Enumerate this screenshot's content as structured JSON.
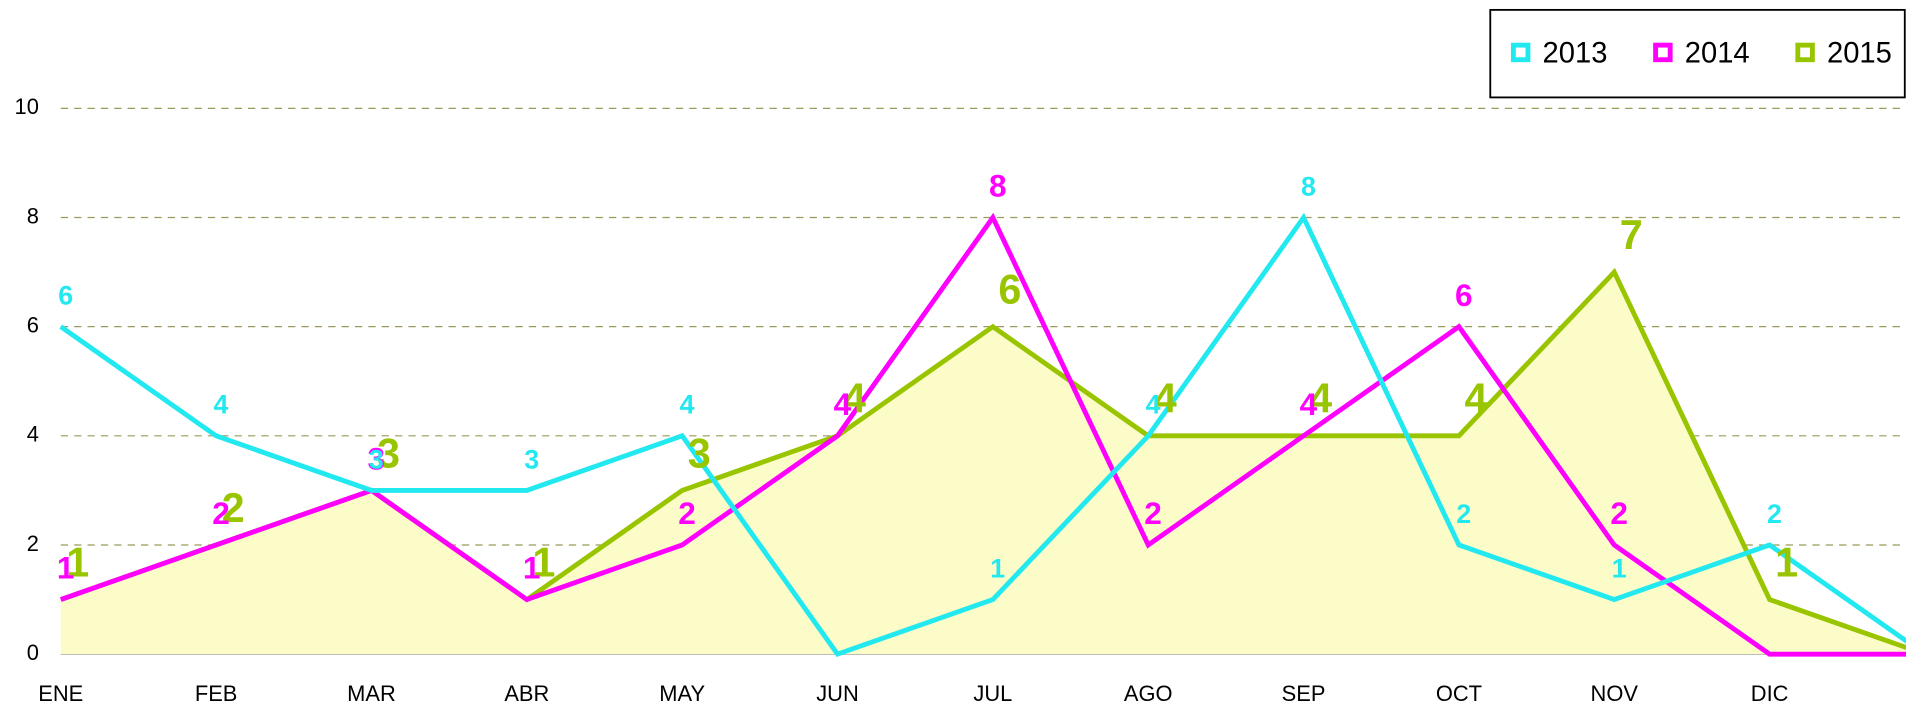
{
  "chart_data": {
    "type": "line",
    "categories": [
      "ENE",
      "FEB",
      "MAR",
      "ABR",
      "MAY",
      "JUN",
      "JUL",
      "AGO",
      "SEP",
      "OCT",
      "NOV",
      "DIC",
      null
    ],
    "series": [
      {
        "name": "2013",
        "color": "#22e8f0",
        "values": [
          6,
          4,
          3,
          3,
          4,
          0,
          1,
          4,
          8,
          2,
          1,
          2,
          0
        ]
      },
      {
        "name": "2014",
        "color": "#ff00ff",
        "values": [
          1,
          2,
          3,
          1,
          2,
          4,
          8,
          2,
          4,
          6,
          2,
          0,
          0
        ]
      },
      {
        "name": "2015",
        "color": "#99c400",
        "values": [
          1,
          2,
          3,
          1,
          3,
          4,
          6,
          4,
          4,
          4,
          7,
          1,
          0
        ],
        "area_color": "#fcfcc8"
      }
    ],
    "ylim": [
      0,
      10
    ],
    "yticks": [
      0,
      2,
      4,
      6,
      8,
      10
    ],
    "grid": true,
    "legend": "top-right"
  }
}
